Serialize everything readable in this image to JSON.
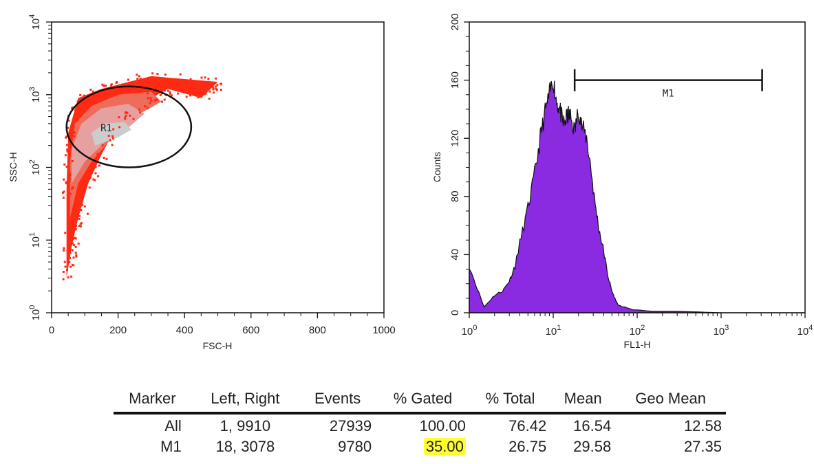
{
  "chart_data": [
    {
      "type": "scatter",
      "subtype": "flow-cytometry-density-plot",
      "xlabel": "FSC-H",
      "ylabel": "SSC-H",
      "xlim": [
        0,
        1000
      ],
      "ylim": [
        1,
        10000
      ],
      "yscale": "log",
      "xticks": [
        "0",
        "200",
        "400",
        "600",
        "800",
        "1000"
      ],
      "yticks": [
        {
          "base": "10",
          "exp": "0"
        },
        {
          "base": "10",
          "exp": "1"
        },
        {
          "base": "10",
          "exp": "2"
        },
        {
          "base": "10",
          "exp": "3"
        },
        {
          "base": "10",
          "exp": "4"
        }
      ],
      "colors": {
        "sparse": "#ff2a14",
        "medium": "#ef6b5a",
        "dense": "#e6a0a0",
        "core": "#cccccc"
      },
      "density_bands": [
        {
          "level": "sparse",
          "points": [
            [
              45,
              3
            ],
            [
              60,
              8
            ],
            [
              80,
              20
            ],
            [
              110,
              60
            ],
            [
              150,
              150
            ],
            [
              200,
              400
            ],
            [
              280,
              800
            ],
            [
              350,
              1200
            ],
            [
              450,
              900
            ],
            [
              500,
              1500
            ],
            [
              300,
              1800
            ],
            [
              150,
              1200
            ],
            [
              80,
              900
            ],
            [
              50,
              300
            ],
            [
              45,
              50
            ]
          ]
        },
        {
          "level": "medium",
          "points": [
            [
              55,
              20
            ],
            [
              80,
              60
            ],
            [
              120,
              120
            ],
            [
              180,
              250
            ],
            [
              250,
              500
            ],
            [
              330,
              800
            ],
            [
              300,
              1100
            ],
            [
              200,
              1000
            ],
            [
              120,
              700
            ],
            [
              70,
              400
            ],
            [
              55,
              120
            ]
          ]
        },
        {
          "level": "dense",
          "points": [
            [
              60,
              60
            ],
            [
              100,
              120
            ],
            [
              160,
              220
            ],
            [
              230,
              350
            ],
            [
              280,
              550
            ],
            [
              230,
              750
            ],
            [
              150,
              650
            ],
            [
              90,
              400
            ],
            [
              60,
              180
            ]
          ]
        },
        {
          "level": "core",
          "points": [
            [
              130,
              200
            ],
            [
              200,
              260
            ],
            [
              240,
              330
            ],
            [
              220,
              420
            ],
            [
              160,
              400
            ],
            [
              120,
              300
            ]
          ]
        }
      ],
      "gate": {
        "name": "R1",
        "shape": "ellipse",
        "center": [
          230,
          350
        ],
        "x_extent": [
          45,
          420
        ],
        "y_extent": [
          100,
          1300
        ]
      }
    },
    {
      "type": "area",
      "subtype": "histogram",
      "xlabel": "FL1-H",
      "ylabel": "Counts",
      "xlim": [
        1,
        10000
      ],
      "xscale": "log",
      "ylim": [
        0,
        200
      ],
      "yticks": [
        "0",
        "40",
        "80",
        "120",
        "160",
        "200"
      ],
      "xticks": [
        {
          "base": "10",
          "exp": "0"
        },
        {
          "base": "10",
          "exp": "1"
        },
        {
          "base": "10",
          "exp": "2"
        },
        {
          "base": "10",
          "exp": "3"
        },
        {
          "base": "10",
          "exp": "4"
        }
      ],
      "fill_color": "#8a2be2",
      "x": [
        1.0,
        1.5,
        2.0,
        2.5,
        3.0,
        3.5,
        4.0,
        5.0,
        6.0,
        7.0,
        8.0,
        9.0,
        10.0,
        11.0,
        12.0,
        13.0,
        14.0,
        15.0,
        16.0,
        18.0,
        20.0,
        22.0,
        25.0,
        28.0,
        31.0,
        35.0,
        40.0,
        45.0,
        50.0,
        55.0,
        60.0,
        70.0,
        80.0,
        90.0,
        100.0,
        150.0,
        300.0,
        1000.0,
        10000.0
      ],
      "y": [
        32,
        4,
        12,
        15,
        22,
        32,
        48,
        72,
        95,
        120,
        138,
        150,
        160,
        145,
        140,
        130,
        132,
        136,
        135,
        125,
        140,
        128,
        120,
        100,
        78,
        58,
        42,
        25,
        15,
        9,
        5,
        4,
        3,
        2,
        2,
        1,
        1,
        0,
        0
      ],
      "marker": {
        "name": "M1",
        "from": 18,
        "to": 3078,
        "y": 160
      }
    }
  ],
  "stats_table": {
    "headers": [
      "Marker",
      "Left, Right",
      "Events",
      "% Gated",
      "% Total",
      "Mean",
      "Geo Mean"
    ],
    "rows": [
      {
        "marker": "All",
        "left_right": "1,  9910",
        "events": "27939",
        "gated": "100.00",
        "total": "76.42",
        "mean": "16.54",
        "geo_mean": "12.58"
      },
      {
        "marker": "M1",
        "left_right": "18,  3078",
        "events": "9780",
        "gated": "35.00",
        "total": "26.75",
        "mean": "29.58",
        "geo_mean": "27.35"
      }
    ],
    "highlight_color": "#ffff33"
  }
}
